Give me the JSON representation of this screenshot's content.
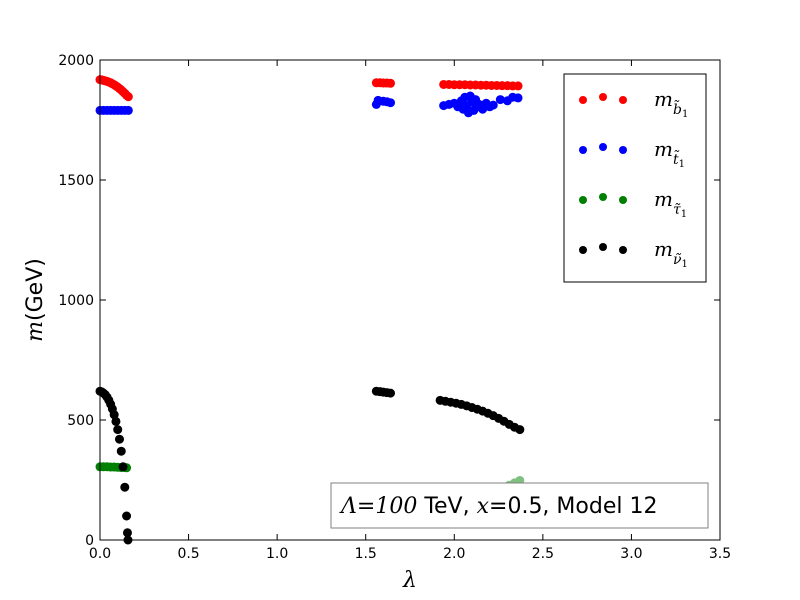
{
  "chart_data": {
    "type": "scatter",
    "title": "",
    "xlabel": "λ",
    "ylabel_symbol": "m",
    "ylabel_unit": "(GeV)",
    "xlim": [
      0.0,
      3.5
    ],
    "ylim": [
      0,
      2000
    ],
    "x_ticks": [
      0.0,
      0.5,
      1.0,
      1.5,
      2.0,
      2.5,
      3.0,
      3.5
    ],
    "x_tick_labels": [
      "0.0",
      "0.5",
      "1.0",
      "1.5",
      "2.0",
      "2.5",
      "3.0",
      "3.5"
    ],
    "y_ticks": [
      0,
      500,
      1000,
      1500,
      2000
    ],
    "y_tick_labels": [
      "0",
      "500",
      "1000",
      "1500",
      "2000"
    ],
    "grid": false,
    "legend_position": "top-right",
    "annotation": {
      "lambda_symbol": "Λ",
      "eq1": "=",
      "val": "100",
      "tev": " TeV, ",
      "x_symbol": "x",
      "rest": "=0.5, Model 12"
    },
    "series": [
      {
        "name": "m_b1",
        "label_main": "m",
        "label_sub": "b̃",
        "label_subsub": "1",
        "color": "#ff0000",
        "points": [
          [
            0.0,
            1918
          ],
          [
            0.01,
            1917
          ],
          [
            0.02,
            1915
          ],
          [
            0.03,
            1913
          ],
          [
            0.04,
            1911
          ],
          [
            0.05,
            1908
          ],
          [
            0.06,
            1905
          ],
          [
            0.07,
            1901
          ],
          [
            0.08,
            1897
          ],
          [
            0.09,
            1892
          ],
          [
            0.1,
            1887
          ],
          [
            0.11,
            1881
          ],
          [
            0.12,
            1875
          ],
          [
            0.13,
            1868
          ],
          [
            0.14,
            1861
          ],
          [
            0.15,
            1853
          ],
          [
            0.16,
            1847
          ],
          [
            1.56,
            1905
          ],
          [
            1.58,
            1905
          ],
          [
            1.6,
            1904
          ],
          [
            1.62,
            1904
          ],
          [
            1.64,
            1903
          ],
          [
            1.94,
            1898
          ],
          [
            1.97,
            1898
          ],
          [
            2.0,
            1897
          ],
          [
            2.03,
            1897
          ],
          [
            2.06,
            1897
          ],
          [
            2.09,
            1896
          ],
          [
            2.12,
            1896
          ],
          [
            2.15,
            1895
          ],
          [
            2.18,
            1895
          ],
          [
            2.21,
            1894
          ],
          [
            2.24,
            1894
          ],
          [
            2.27,
            1893
          ],
          [
            2.3,
            1893
          ],
          [
            2.33,
            1892
          ],
          [
            2.36,
            1892
          ]
        ]
      },
      {
        "name": "m_t1",
        "label_main": "m",
        "label_sub": "t̃",
        "label_subsub": "1",
        "color": "#0000ff",
        "points": [
          [
            0.0,
            1790
          ],
          [
            0.02,
            1790
          ],
          [
            0.04,
            1790
          ],
          [
            0.06,
            1790
          ],
          [
            0.08,
            1790
          ],
          [
            0.1,
            1790
          ],
          [
            0.12,
            1790
          ],
          [
            0.14,
            1790
          ],
          [
            0.16,
            1790
          ],
          [
            1.56,
            1815
          ],
          [
            1.57,
            1832
          ],
          [
            1.6,
            1828
          ],
          [
            1.62,
            1826
          ],
          [
            1.64,
            1822
          ],
          [
            1.94,
            1810
          ],
          [
            1.97,
            1815
          ],
          [
            2.0,
            1820
          ],
          [
            2.02,
            1805
          ],
          [
            2.04,
            1830
          ],
          [
            2.05,
            1795
          ],
          [
            2.06,
            1845
          ],
          [
            2.07,
            1810
          ],
          [
            2.08,
            1780
          ],
          [
            2.09,
            1850
          ],
          [
            2.1,
            1825
          ],
          [
            2.11,
            1790
          ],
          [
            2.12,
            1835
          ],
          [
            2.13,
            1805
          ],
          [
            2.14,
            1815
          ],
          [
            2.16,
            1795
          ],
          [
            2.18,
            1820
          ],
          [
            2.2,
            1805
          ],
          [
            2.22,
            1812
          ],
          [
            2.26,
            1835
          ],
          [
            2.3,
            1830
          ],
          [
            2.33,
            1845
          ],
          [
            2.36,
            1842
          ]
        ]
      },
      {
        "name": "m_tau1",
        "label_main": "m",
        "label_sub": "τ̃",
        "label_subsub": "1",
        "color": "#008000",
        "points": [
          [
            0.0,
            305
          ],
          [
            0.02,
            305
          ],
          [
            0.04,
            305
          ],
          [
            0.06,
            304
          ],
          [
            0.08,
            304
          ],
          [
            0.1,
            303
          ],
          [
            0.12,
            302
          ],
          [
            0.14,
            302
          ],
          [
            0.15,
            301
          ]
        ]
      },
      {
        "name": "m_nu1",
        "label_main": "m",
        "label_sub": "ν̃",
        "label_subsub": "1",
        "color": "#000000",
        "points": [
          [
            0.0,
            620
          ],
          [
            0.01,
            617
          ],
          [
            0.02,
            612
          ],
          [
            0.03,
            605
          ],
          [
            0.04,
            595
          ],
          [
            0.05,
            582
          ],
          [
            0.06,
            566
          ],
          [
            0.07,
            546
          ],
          [
            0.08,
            522
          ],
          [
            0.09,
            494
          ],
          [
            0.1,
            460
          ],
          [
            0.11,
            420
          ],
          [
            0.12,
            370
          ],
          [
            0.13,
            305
          ],
          [
            0.14,
            220
          ],
          [
            0.15,
            100
          ],
          [
            0.155,
            30
          ],
          [
            0.158,
            0
          ],
          [
            1.56,
            620
          ],
          [
            1.58,
            618
          ],
          [
            1.6,
            616
          ],
          [
            1.62,
            614
          ],
          [
            1.64,
            612
          ],
          [
            1.92,
            582
          ],
          [
            1.95,
            578
          ],
          [
            1.98,
            574
          ],
          [
            2.01,
            570
          ],
          [
            2.04,
            565
          ],
          [
            2.07,
            559
          ],
          [
            2.1,
            552
          ],
          [
            2.13,
            545
          ],
          [
            2.16,
            537
          ],
          [
            2.19,
            528
          ],
          [
            2.22,
            518
          ],
          [
            2.25,
            507
          ],
          [
            2.28,
            495
          ],
          [
            2.31,
            482
          ],
          [
            2.34,
            470
          ],
          [
            2.37,
            460
          ]
        ]
      },
      {
        "name": "m_tau1_light",
        "color": "#7fbf7f",
        "points": [
          [
            1.56,
            118
          ],
          [
            1.58,
            125
          ],
          [
            1.6,
            132
          ],
          [
            1.62,
            138
          ],
          [
            1.64,
            142
          ],
          [
            1.92,
            130
          ],
          [
            1.95,
            136
          ],
          [
            1.98,
            142
          ],
          [
            2.01,
            148
          ],
          [
            2.04,
            155
          ],
          [
            2.07,
            162
          ],
          [
            2.1,
            170
          ],
          [
            2.13,
            177
          ],
          [
            2.16,
            185
          ],
          [
            2.19,
            192
          ],
          [
            2.22,
            200
          ],
          [
            2.25,
            210
          ],
          [
            2.28,
            220
          ],
          [
            2.31,
            228
          ],
          [
            2.34,
            238
          ],
          [
            2.37,
            248
          ]
        ]
      }
    ]
  }
}
